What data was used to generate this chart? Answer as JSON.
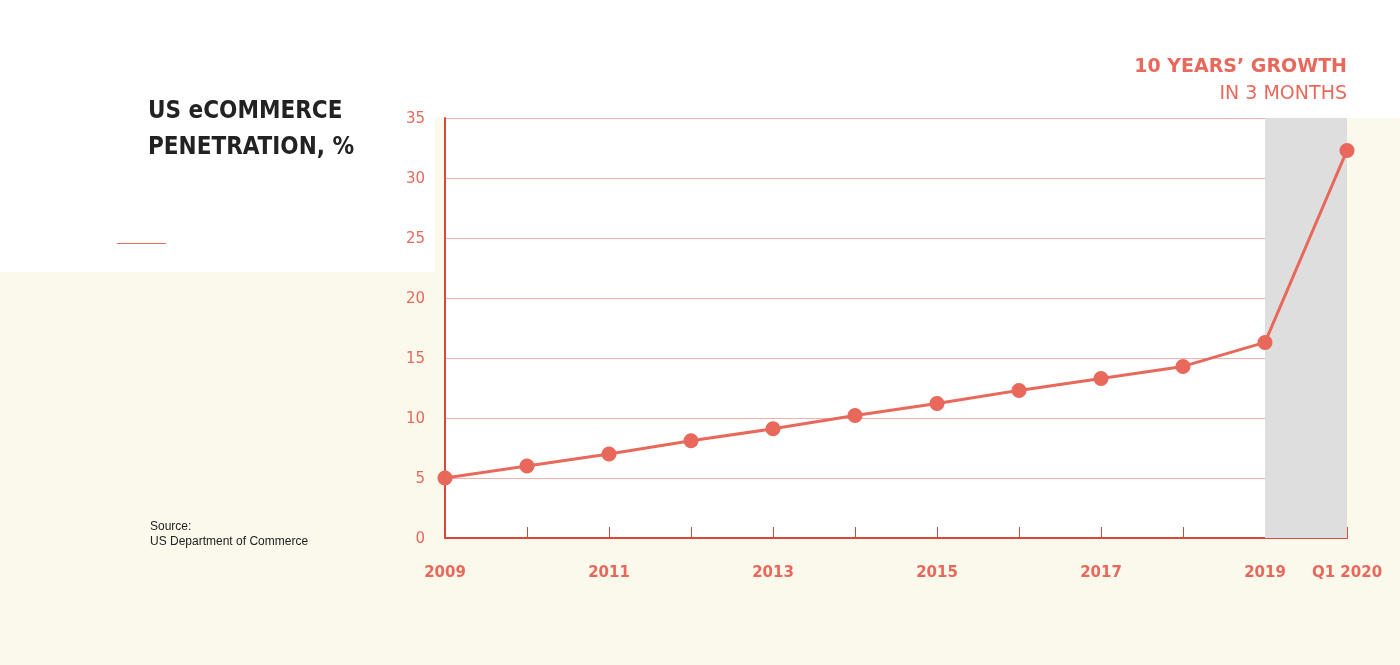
{
  "chart_data": {
    "type": "line",
    "title": "US eCOMMERCE\nPENETRATION, %",
    "categories": [
      "2009",
      null,
      "2011",
      null,
      "2013",
      null,
      "2015",
      null,
      "2017",
      null,
      "2019",
      "Q1 2020"
    ],
    "series": [
      {
        "color": "#e8695b",
        "values": [
          5,
          6.0,
          7.0,
          8.1,
          9.1,
          10.2,
          11.2,
          12.3,
          13.3,
          14.3,
          16.3,
          32.3
        ]
      }
    ],
    "ylim": [
      0,
      35
    ],
    "yticks": [
      0,
      5,
      10,
      15,
      20,
      25,
      30,
      35
    ],
    "grid": "y",
    "marker": "circle",
    "line_style": "solid",
    "bands": [
      {
        "axis": "x",
        "from": "2019",
        "to": "Q1 2020",
        "label": "10 YEARS’ GROWTH\nIN 3 MONTHS",
        "color": "#dedede"
      }
    ],
    "annotations": [
      "Source:\nUS Department of Commerce"
    ]
  }
}
